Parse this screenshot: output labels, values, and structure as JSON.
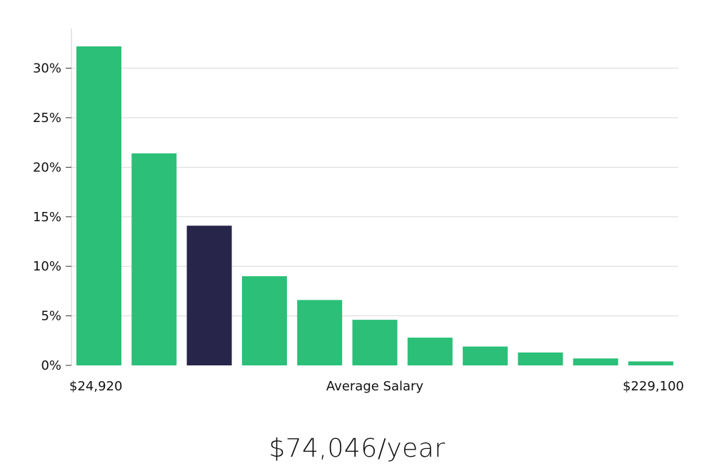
{
  "chart_data": {
    "type": "bar",
    "title": "",
    "xlabel": "Average Salary",
    "ylabel": "",
    "x_min_label": "$24,920",
    "x_max_label": "$229,100",
    "ylim": [
      0,
      34
    ],
    "yticks": [
      0,
      5,
      10,
      15,
      20,
      25,
      30
    ],
    "ytick_labels": [
      "0%",
      "5%",
      "10%",
      "15%",
      "20%",
      "25%",
      "30%"
    ],
    "values": [
      32.2,
      21.4,
      14.1,
      9.0,
      6.6,
      4.6,
      2.8,
      1.9,
      1.3,
      0.7,
      0.4
    ],
    "highlight_index": 2,
    "grid": true
  },
  "colors": {
    "bar": "#2bbf78",
    "bar_highlight": "#27254a",
    "grid": "#d8d8d8",
    "axis": "#cccccc"
  },
  "summary": {
    "average_salary": "$74,046/year"
  }
}
